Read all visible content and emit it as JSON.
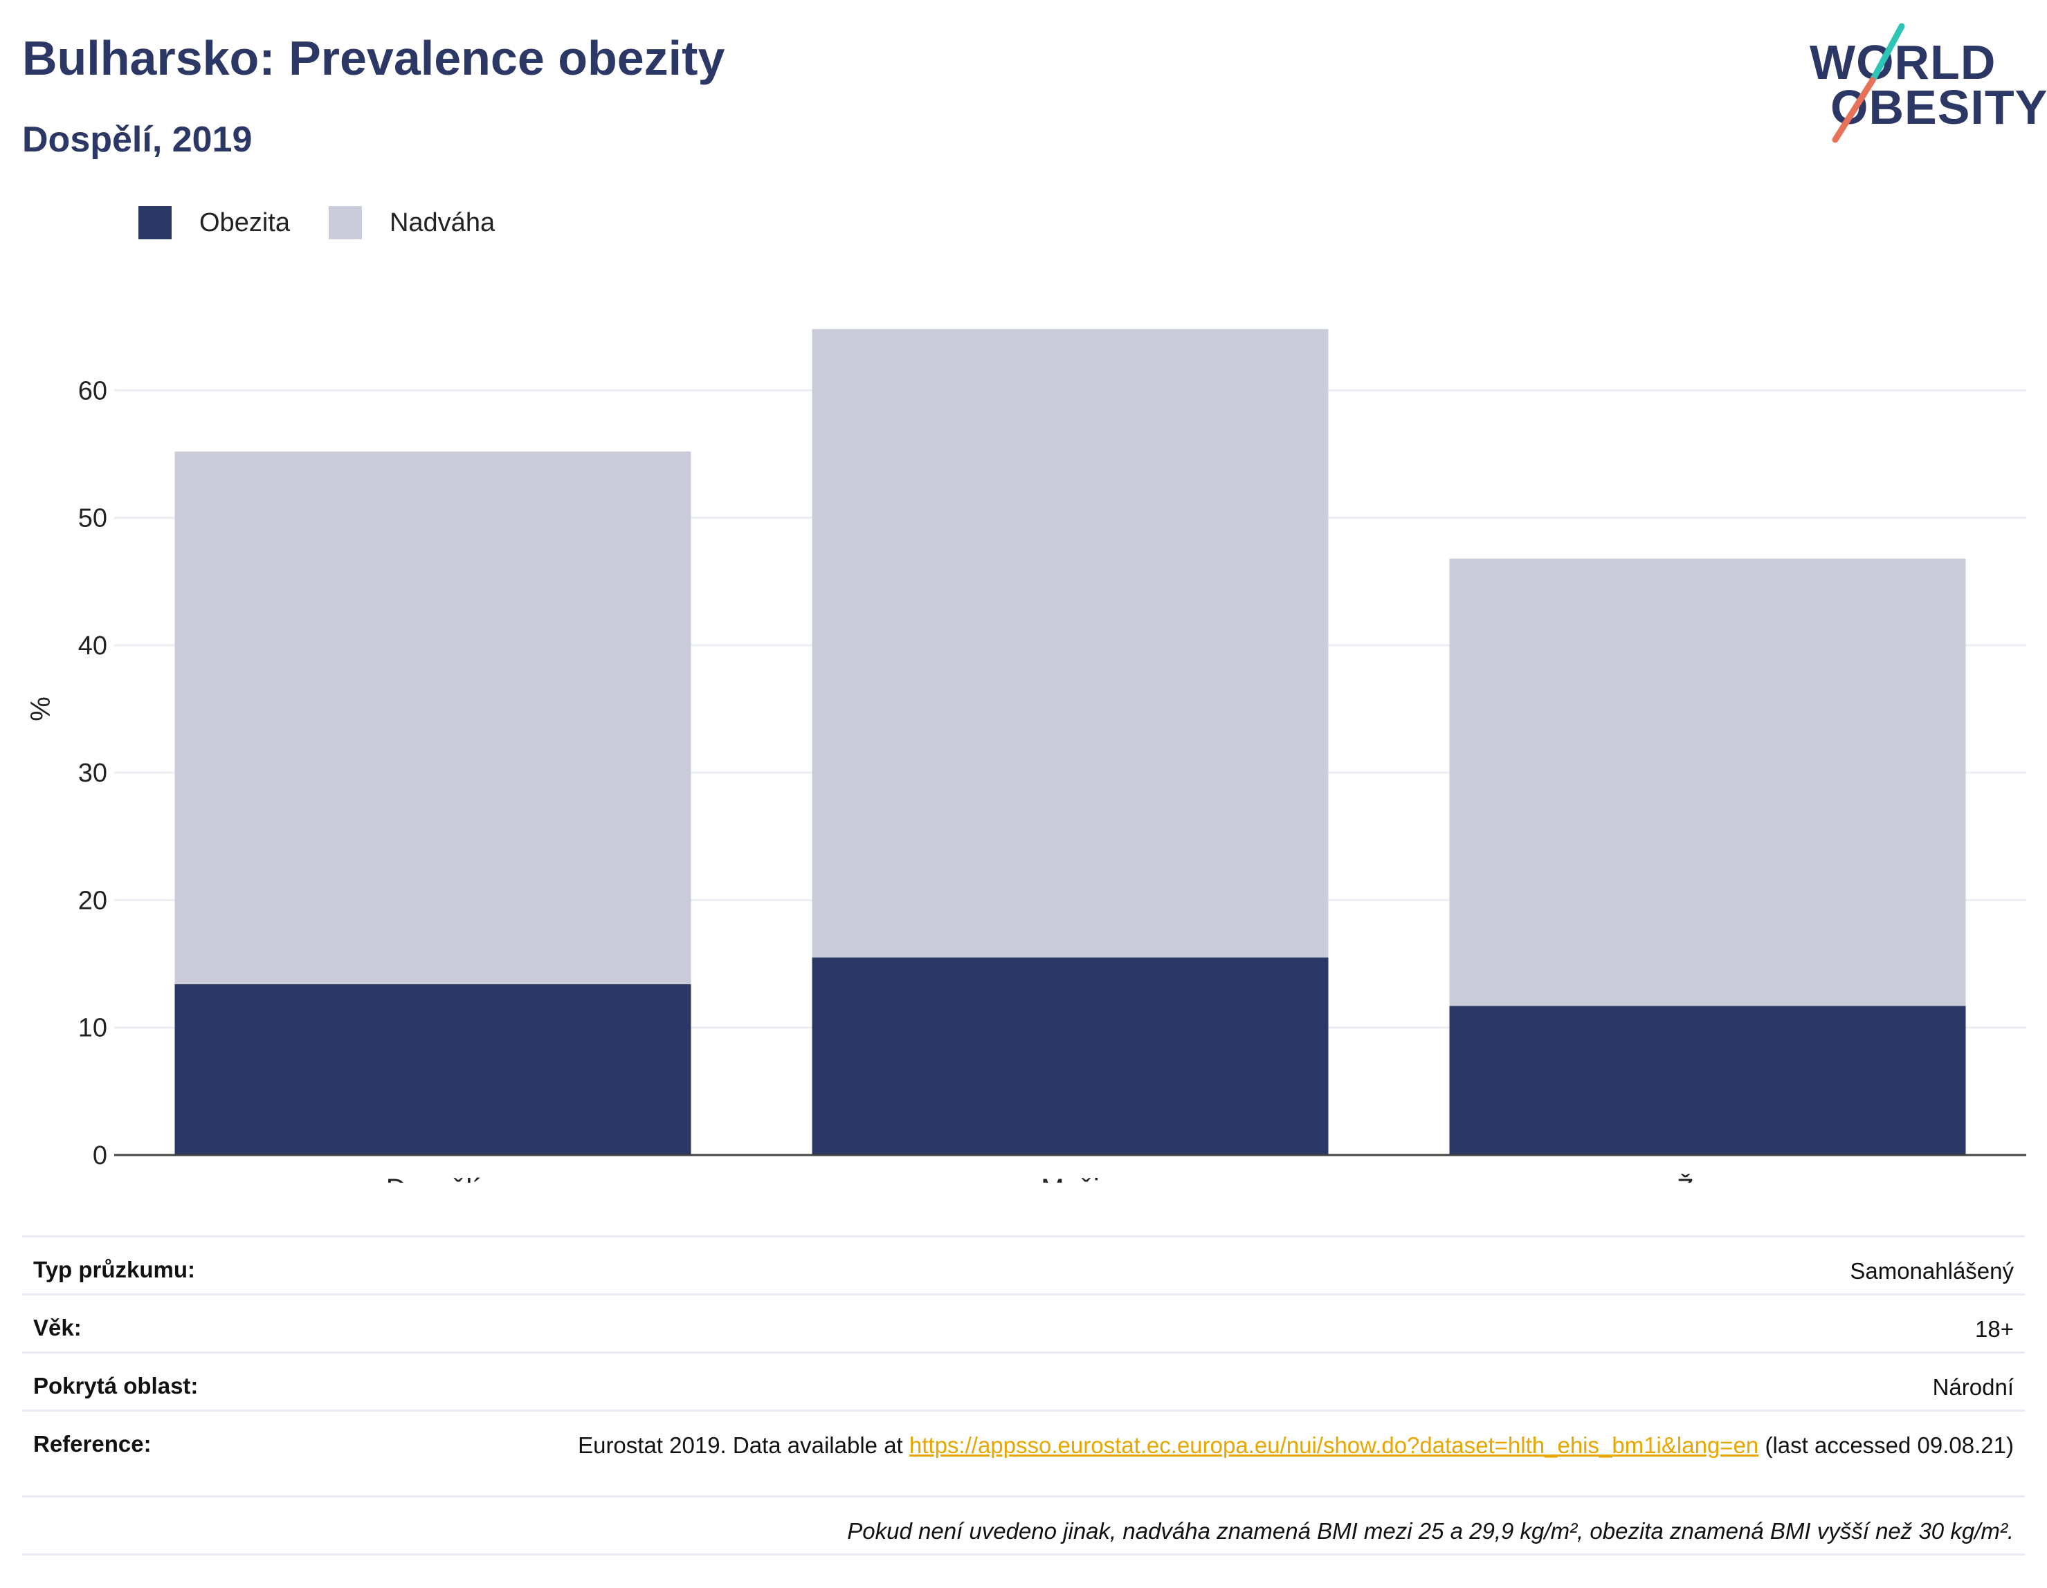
{
  "header": {
    "title": "Bulharsko: Prevalence obezity",
    "subtitle": "Dospělí, 2019"
  },
  "logo": {
    "line1": "WORLD",
    "line2": "OBESITY",
    "colors": {
      "text": "#2b3764",
      "slash_teal": "#2ec4b6",
      "slash_coral": "#e8715a"
    }
  },
  "colors": {
    "obesity": "#2b3764",
    "overweight": "#cacdd9",
    "grid": "#eceef3",
    "axis": "#444444",
    "link": "#e7a600"
  },
  "chart_data": {
    "type": "bar",
    "stacked": true,
    "categories": [
      "Dospělí",
      "Muži",
      "Ženy"
    ],
    "series": [
      {
        "name": "Obezita",
        "values": [
          13.4,
          15.5,
          11.7
        ]
      },
      {
        "name": "Nadváha",
        "values": [
          41.8,
          49.3,
          35.1
        ]
      }
    ],
    "title": "",
    "xlabel": "",
    "ylabel": "%",
    "ylim": [
      0,
      70
    ],
    "yticks": [
      0,
      10,
      20,
      30,
      40,
      50,
      60
    ],
    "grid": true,
    "legend_position": "top-left"
  },
  "info": {
    "rows": [
      {
        "key": "Typ průzkumu:",
        "value": "Samonahlášený"
      },
      {
        "key": "Věk:",
        "value": "18+"
      },
      {
        "key": "Pokrytá oblast:",
        "value": "Národní"
      }
    ],
    "reference": {
      "key": "Reference:",
      "prefix": "Eurostat 2019. Data available at ",
      "link": "https://appsso.eurostat.ec.europa.eu/nui/show.do?dataset=hlth_ehis_bm1i&lang=en",
      "suffix": " (last accessed 09.08.21)"
    },
    "footnote": "Pokud není uvedeno jinak, nadváha znamená BMI mezi 25 a 29,9 kg/m², obezita znamená BMI vyšší než 30 kg/m²."
  }
}
